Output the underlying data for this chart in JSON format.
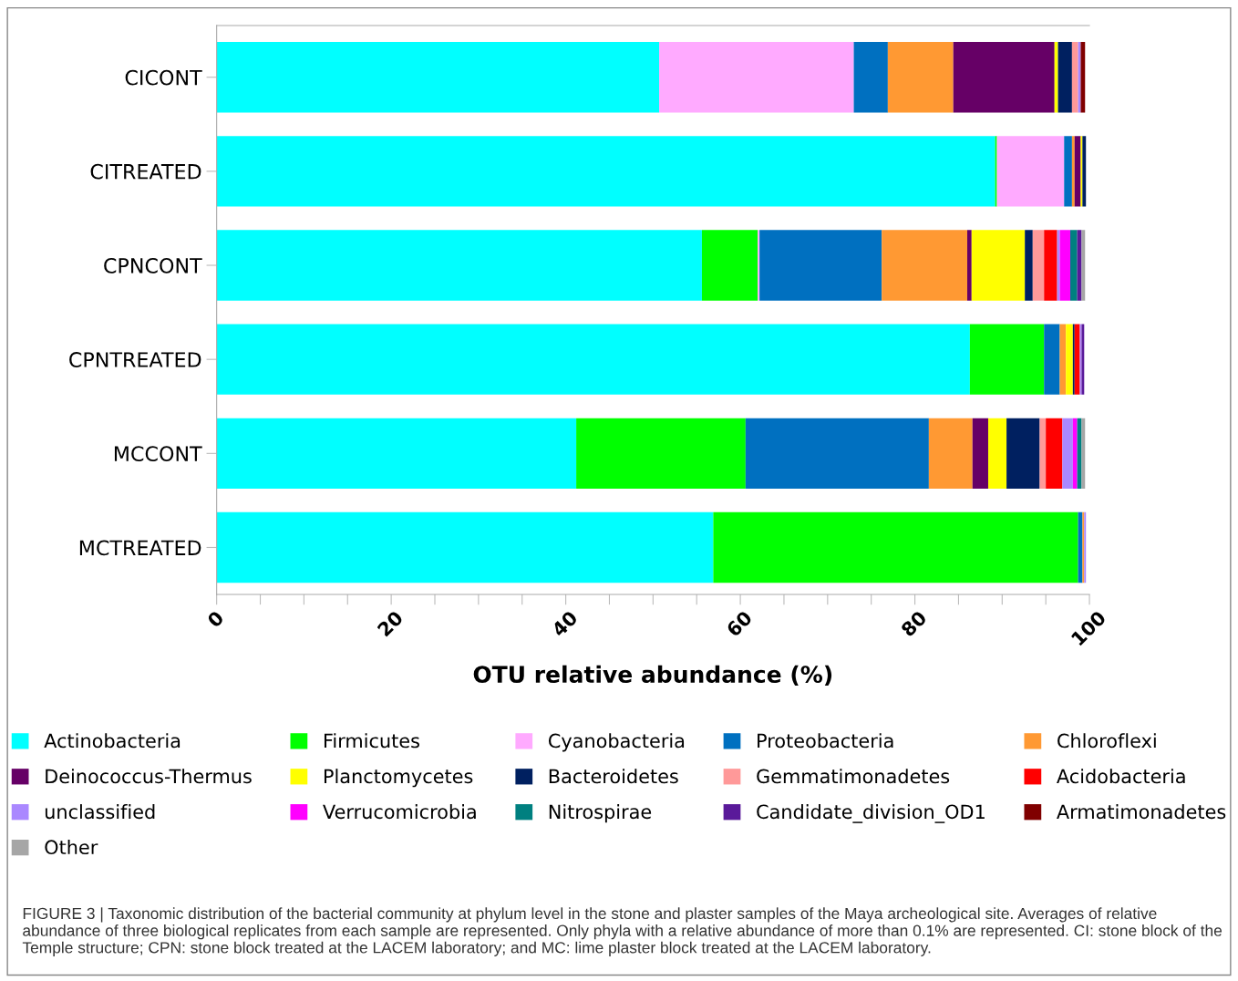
{
  "chart_data": {
    "type": "bar",
    "orientation": "horizontal",
    "stacked": true,
    "categories": [
      "CICONT",
      "CITREATED",
      "CPNCONT",
      "CPNTREATED",
      "MCCONT",
      "MCTREATED"
    ],
    "series": [
      {
        "name": "Actinobacteria",
        "color": "#00ffff",
        "values": [
          50.7,
          89.2,
          55.6,
          86.3,
          41.2,
          56.9
        ]
      },
      {
        "name": "Firmicutes",
        "color": "#00ff00",
        "values": [
          null,
          0.2,
          6.4,
          8.5,
          19.4,
          41.8
        ]
      },
      {
        "name": "Cyanobacteria",
        "color": "#ffaaff",
        "values": [
          22.3,
          7.7,
          0.2,
          null,
          null,
          null
        ]
      },
      {
        "name": "Proteobacteria",
        "color": "#0070c0",
        "values": [
          3.9,
          0.9,
          14.0,
          1.8,
          21.0,
          0.5
        ]
      },
      {
        "name": "Chloroflexi",
        "color": "#ff9933",
        "values": [
          7.5,
          0.3,
          9.8,
          0.7,
          5.0,
          0.2
        ]
      },
      {
        "name": "Deinococcus-Thermus",
        "color": "#660066",
        "values": [
          11.6,
          0.7,
          0.5,
          null,
          1.8,
          null
        ]
      },
      {
        "name": "Planctomycetes",
        "color": "#ffff00",
        "values": [
          0.4,
          0.2,
          6.1,
          0.8,
          2.1,
          null
        ]
      },
      {
        "name": "Bacteroidetes",
        "color": "#002060",
        "values": [
          1.6,
          0.4,
          0.9,
          0.2,
          3.8,
          null
        ]
      },
      {
        "name": "Gemmatimonadetes",
        "color": "#ff9999",
        "values": [
          0.7,
          null,
          1.3,
          null,
          0.7,
          null
        ]
      },
      {
        "name": "Acidobacteria",
        "color": "#ff0000",
        "values": [
          null,
          null,
          1.5,
          0.6,
          1.9,
          null
        ]
      },
      {
        "name": "unclassified",
        "color": "#aa88ff",
        "values": [
          0.3,
          null,
          0.3,
          0.2,
          1.2,
          0.2
        ]
      },
      {
        "name": "Verrucomicrobia",
        "color": "#ff00ff",
        "values": [
          null,
          null,
          1.2,
          null,
          0.5,
          null
        ]
      },
      {
        "name": "Nitrospirae",
        "color": "#008080",
        "values": [
          null,
          null,
          0.8,
          null,
          0.5,
          null
        ]
      },
      {
        "name": "Candidate_division_OD1",
        "color": "#5a1a9a",
        "values": [
          null,
          null,
          0.5,
          0.3,
          null,
          null
        ]
      },
      {
        "name": "Armatimonadetes",
        "color": "#800000",
        "values": [
          0.5,
          null,
          null,
          null,
          null,
          null
        ]
      },
      {
        "name": "Other",
        "color": "#a6a6a6",
        "values": [
          null,
          null,
          0.4,
          null,
          0.4,
          null
        ]
      }
    ],
    "xlim": [
      0,
      100
    ],
    "xticks": [
      0,
      {
        "value": 5,
        "label": null
      },
      {
        "value": 10,
        "label": null
      },
      {
        "value": 15,
        "label": null
      },
      20,
      {
        "value": 25,
        "label": null
      },
      {
        "value": 30,
        "label": null
      },
      {
        "value": 35,
        "label": null
      },
      40,
      {
        "value": 45,
        "label": null
      },
      {
        "value": 50,
        "label": null
      },
      {
        "value": 55,
        "label": null
      },
      60,
      {
        "value": 65,
        "label": null
      },
      {
        "value": 70,
        "label": null
      },
      {
        "value": 75,
        "label": null
      },
      80,
      {
        "value": 85,
        "label": null
      },
      {
        "value": 90,
        "label": null
      },
      {
        "value": 95,
        "label": null
      },
      100
    ],
    "xlabel": "OTU relative abundance (%)",
    "legend": "bottom",
    "grid": false,
    "annotations": [
      "FIGURE 3 | Taxonomic distribution of the bacterial community at phylum level in the stone and plaster samples of the Maya archeological site. Averages of relative abundance of three biological replicates from each sample are represented. Only phyla with a relative abundance of more than 0.1% are represented. CI: stone block of the Temple structure; CPN: stone block treated at the LACEM laboratory; and MC: lime plaster block treated at the LACEM laboratory."
    ]
  }
}
